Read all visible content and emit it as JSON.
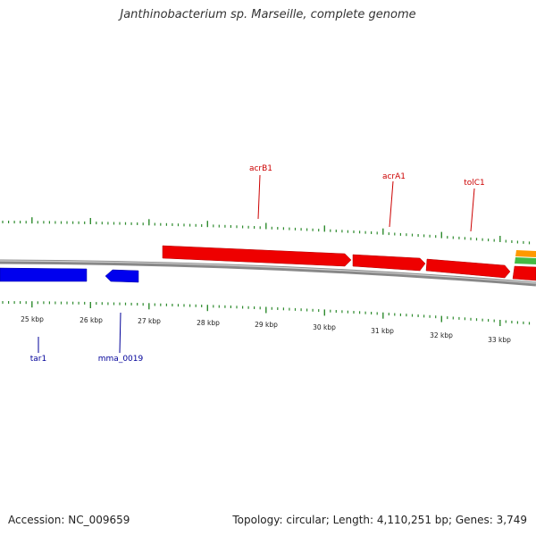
{
  "title": "Janthinobacterium sp. Marseille, complete genome",
  "footer": {
    "accession": "Accession: NC_009659",
    "summary": "Topology: circular; Length: 4,110,251 bp; Genes: 3,749"
  },
  "colors": {
    "forward_gene": "#e00000",
    "reverse_gene": "#0000dd",
    "forward_label": "#cc0000",
    "reverse_label": "#000099",
    "tick": "#2e8b2e",
    "backbone": "#888888",
    "orange_feature": "#ff9900",
    "green_feature": "#44bb44"
  },
  "scale": {
    "ticks": [
      {
        "label": "25 kbp"
      },
      {
        "label": "26 kbp"
      },
      {
        "label": "27 kbp"
      },
      {
        "label": "28 kbp"
      },
      {
        "label": "29 kbp"
      },
      {
        "label": "30 kbp"
      },
      {
        "label": "31 kbp"
      },
      {
        "label": "32 kbp"
      },
      {
        "label": "33 kbp"
      }
    ]
  },
  "genes": {
    "forward": [
      {
        "name": "acrB1"
      },
      {
        "name": "acrA1"
      },
      {
        "name": "tolC1"
      }
    ],
    "reverse": [
      {
        "name": "tar1"
      },
      {
        "name": "mma_0019"
      }
    ]
  }
}
